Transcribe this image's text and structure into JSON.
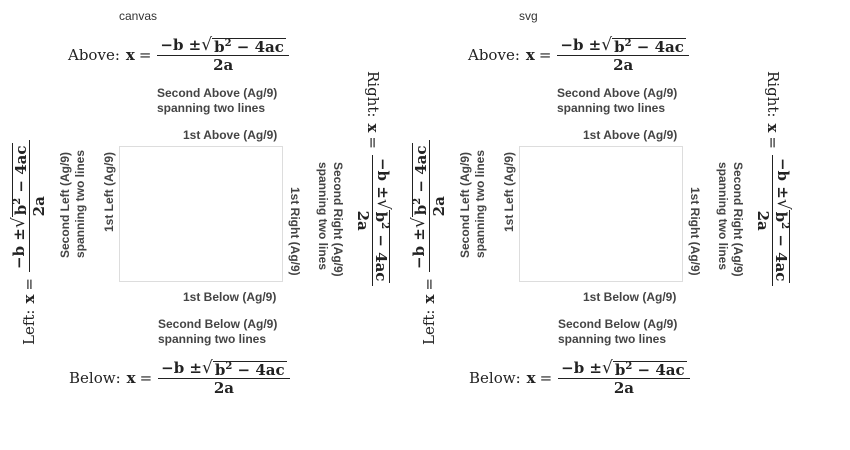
{
  "panels": [
    {
      "title": "canvas",
      "labels": {
        "above1": "1st Above (Ag/9)",
        "above2_line1": "Second Above (Ag/9)",
        "above2_line2": "spanning two lines",
        "below1": "1st Below (Ag/9)",
        "below2_line1": "Second Below (Ag/9)",
        "below2_line2": "spanning two lines",
        "left1": "1st Left (Ag/9)",
        "left2_line1": "Second Left (Ag/9)",
        "left2_line2": "spanning two lines",
        "right1": "1st Right (Ag/9)",
        "right2_line1": "Second Right (Ag/9)",
        "right2_line2": "spanning two lines"
      }
    },
    {
      "title": "svg",
      "labels": {
        "above1": "1st Above (Ag/9)",
        "above2_line1": "Second Above (Ag/9)",
        "above2_line2": "spanning two lines",
        "below1": "1st Below (Ag/9)",
        "below2_line1": "Second Below (Ag/9)",
        "below2_line2": "spanning two lines",
        "left1": "1st Left (Ag/9)",
        "left2_line1": "Second Left (Ag/9)",
        "left2_line2": "spanning two lines",
        "right1": "1st Right (Ag/9)",
        "right2_line1": "Second Right (Ag/9)",
        "right2_line2": "spanning two lines"
      }
    }
  ],
  "formula": {
    "variable": "x",
    "equals": "=",
    "numerator_prefix": "−b ± ",
    "radical": "√",
    "radicand_base": "b",
    "radicand_exp": "2",
    "radicand_rest": " − 4ac",
    "denominator": "2a",
    "prefixes": {
      "above": "Above:",
      "below": "Below:",
      "left": "Left:",
      "right": "Right:"
    }
  }
}
